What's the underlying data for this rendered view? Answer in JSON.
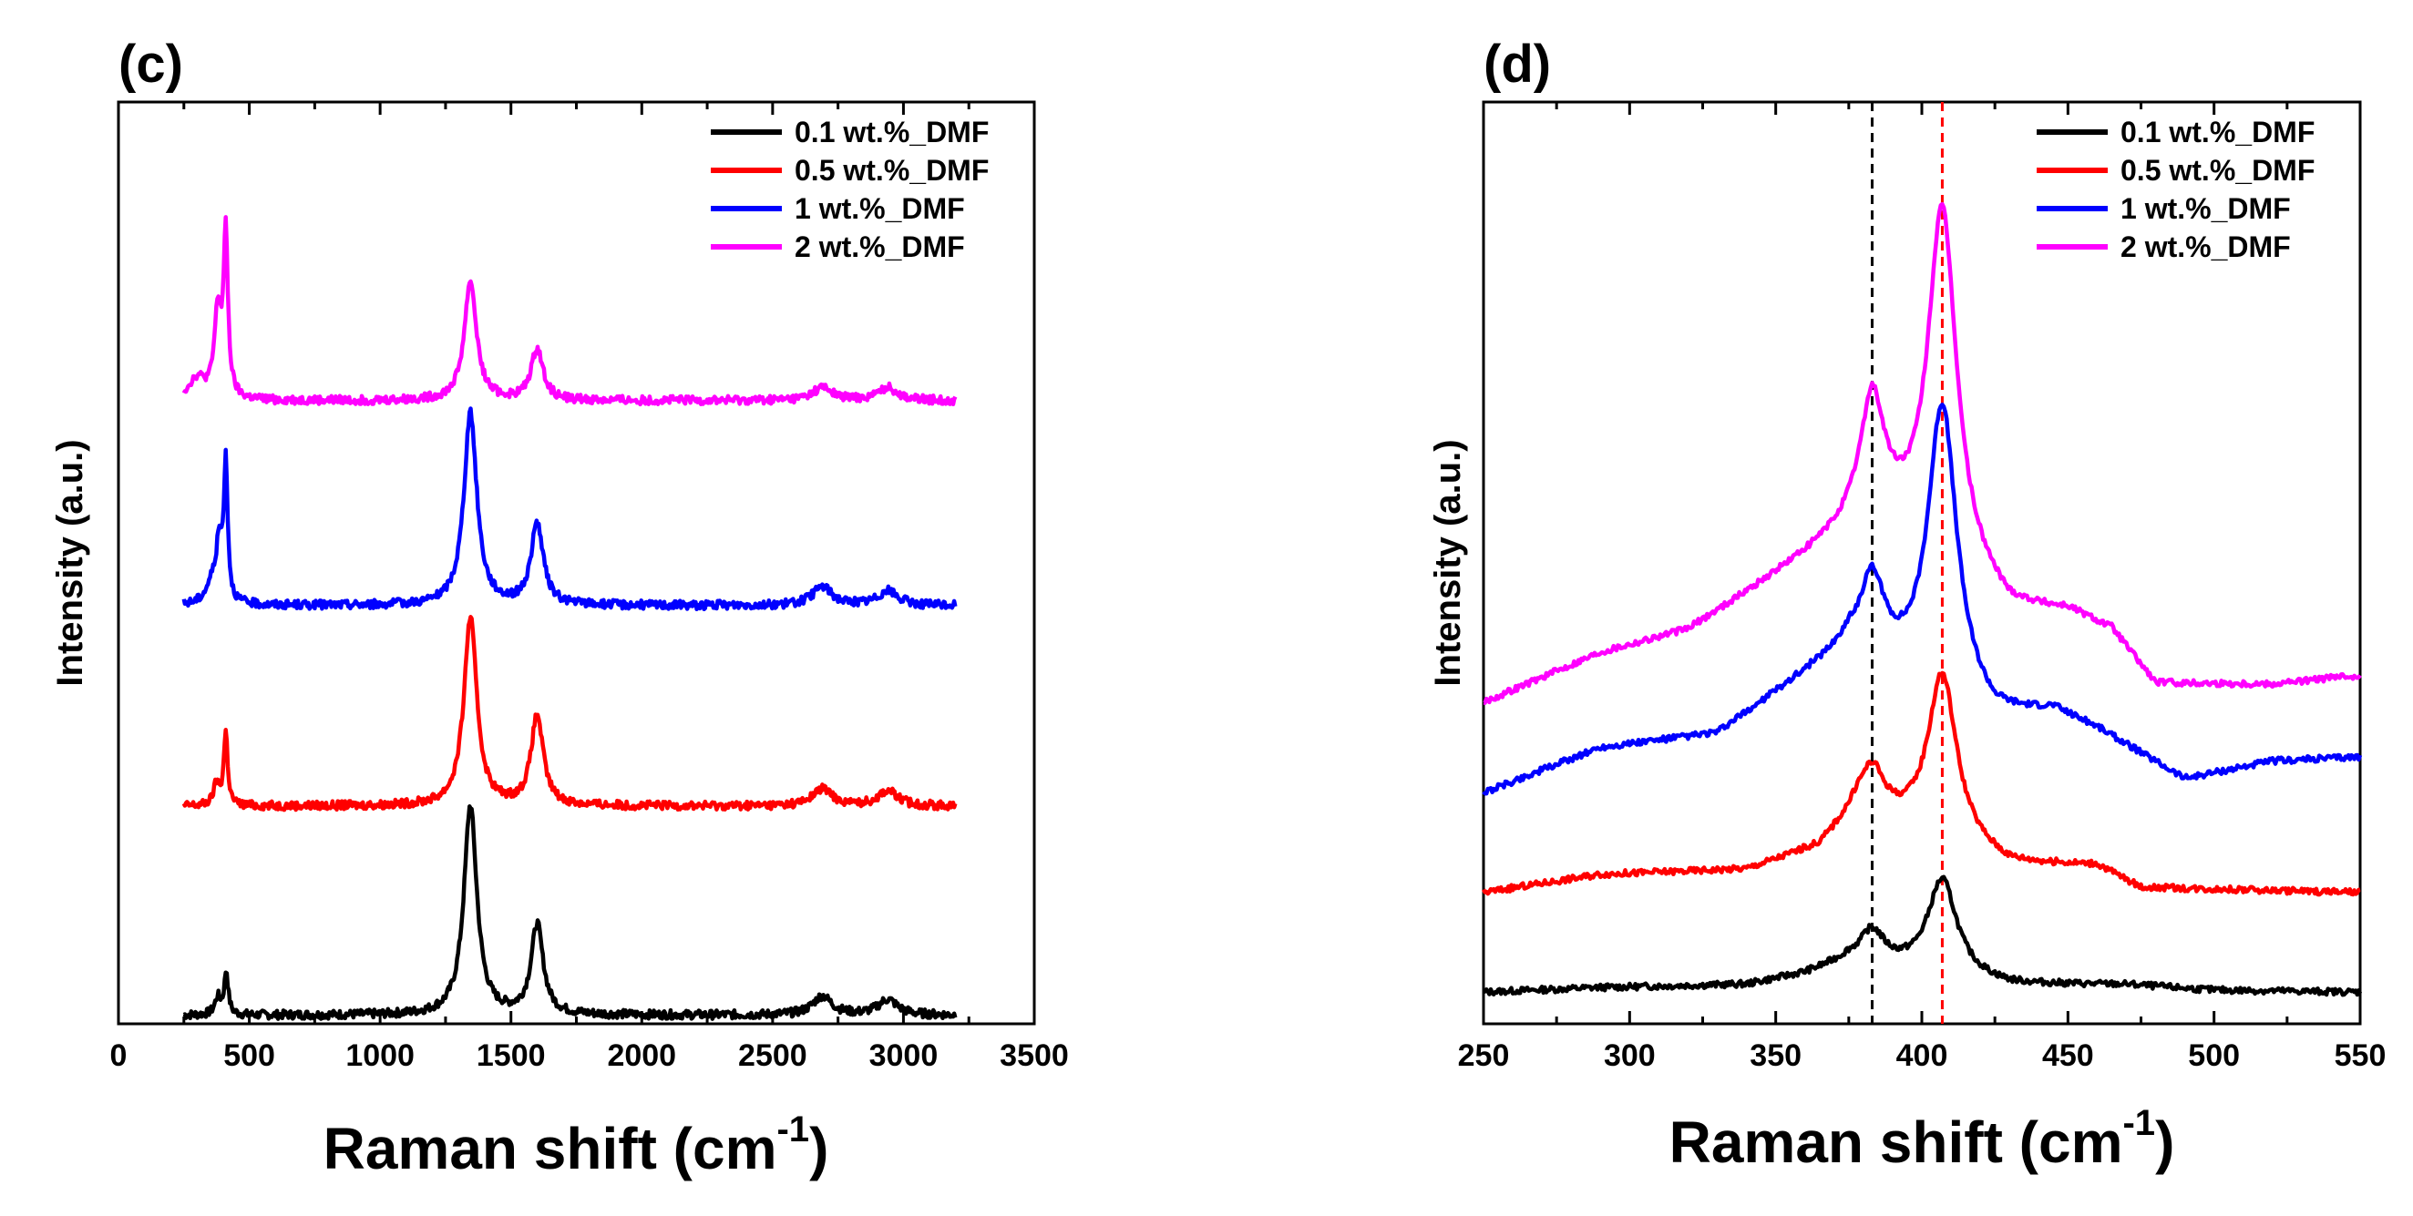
{
  "chart_data": [
    {
      "panel_label": "(c)",
      "type": "line",
      "xlabel_main": "Raman shift",
      "xlabel_unit": "cm",
      "xlabel_sup": "-1",
      "ylabel": "Intensity (a.u.)",
      "xlim": [
        0,
        3500
      ],
      "ylim": [
        0,
        10.8
      ],
      "xticks": [
        "0",
        "500",
        "1000",
        "1500",
        "2000",
        "2500",
        "3000",
        "3500"
      ],
      "yticks_shown": false,
      "legend_position": "top-right",
      "series": [
        {
          "name": "0.1 wt.%_DMF",
          "color": "#000000",
          "offset": 0.1,
          "peaks": [
            [
              380,
              0.2,
              14
            ],
            [
              412,
              0.5,
              9
            ],
            [
              1345,
              2.45,
              30
            ],
            [
              1600,
              1.05,
              28
            ],
            [
              2690,
              0.22,
              45
            ],
            [
              2940,
              0.18,
              45
            ]
          ]
        },
        {
          "name": "0.5 wt.%_DMF",
          "color": "#ff0000",
          "offset": 2.55,
          "peaks": [
            [
              375,
              0.25,
              14
            ],
            [
              410,
              0.85,
              9
            ],
            [
              1345,
              2.2,
              30
            ],
            [
              1600,
              1.05,
              28
            ],
            [
              2690,
              0.2,
              45
            ],
            [
              2940,
              0.18,
              45
            ]
          ]
        },
        {
          "name": "1 wt.%_DMF",
          "color": "#0000ff",
          "offset": 4.9,
          "peaks": [
            [
              360,
              0.25,
              30
            ],
            [
              385,
              0.6,
              13
            ],
            [
              410,
              1.6,
              9
            ],
            [
              1345,
              2.25,
              30
            ],
            [
              1600,
              0.95,
              28
            ],
            [
              2690,
              0.22,
              45
            ],
            [
              2940,
              0.17,
              45
            ]
          ]
        },
        {
          "name": "2 wt.%_DMF",
          "color": "#ff00ff",
          "offset": 7.3,
          "peaks": [
            [
              300,
              0.25,
              40
            ],
            [
              380,
              1.0,
              16
            ],
            [
              410,
              1.85,
              10
            ],
            [
              1345,
              1.4,
              28
            ],
            [
              1600,
              0.6,
              28
            ],
            [
              2690,
              0.15,
              45
            ],
            [
              2940,
              0.15,
              45
            ]
          ]
        }
      ]
    },
    {
      "panel_label": "(d)",
      "type": "line",
      "xlabel_main": "Raman shift",
      "xlabel_unit": "cm",
      "xlabel_sup": "-1",
      "ylabel": "Intensity (a.u.)",
      "xlim": [
        250,
        550
      ],
      "ylim": [
        0,
        10.2
      ],
      "xticks": [
        "250",
        "300",
        "350",
        "400",
        "450",
        "500",
        "550"
      ],
      "yticks_shown": false,
      "legend_position": "top-right",
      "reference_lines": [
        {
          "x": 383,
          "color": "#000000"
        },
        {
          "x": 407,
          "color": "#ff0000"
        }
      ],
      "series": [
        {
          "name": "0.1 wt.%_DMF",
          "color": "#000000",
          "offset": 0.35,
          "baseline": [
            [
              250,
              0.0
            ],
            [
              290,
              0.05
            ],
            [
              340,
              0.08
            ],
            [
              360,
              0.2
            ],
            [
              375,
              0.35
            ],
            [
              430,
              0.08
            ],
            [
              470,
              0.08
            ],
            [
              500,
              0.02
            ],
            [
              550,
              0.0
            ]
          ],
          "peaks": [
            [
              383,
              0.35,
              5
            ],
            [
              407,
              1.05,
              6
            ]
          ]
        },
        {
          "name": "0.5 wt.%_DMF",
          "color": "#ff0000",
          "offset": 1.45,
          "baseline": [
            [
              250,
              0.0
            ],
            [
              290,
              0.2
            ],
            [
              340,
              0.25
            ],
            [
              365,
              0.5
            ],
            [
              378,
              0.9
            ],
            [
              430,
              0.3
            ],
            [
              460,
              0.3
            ],
            [
              475,
              0.05
            ],
            [
              550,
              0.0
            ]
          ],
          "peaks": [
            [
              383,
              0.5,
              5
            ],
            [
              407,
              1.85,
              6
            ]
          ]
        },
        {
          "name": "1 wt.%_DMF",
          "color": "#0000ff",
          "offset": 2.55,
          "baseline": [
            [
              250,
              0.0
            ],
            [
              290,
              0.5
            ],
            [
              330,
              0.65
            ],
            [
              355,
              1.2
            ],
            [
              375,
              1.6
            ],
            [
              425,
              0.8
            ],
            [
              445,
              0.9
            ],
            [
              460,
              0.7
            ],
            [
              490,
              0.15
            ],
            [
              520,
              0.35
            ],
            [
              550,
              0.4
            ]
          ],
          "peaks": [
            [
              383,
              0.85,
              5
            ],
            [
              407,
              3.2,
              6
            ]
          ]
        },
        {
          "name": "2 wt.%_DMF",
          "color": "#ff00ff",
          "offset": 3.55,
          "baseline": [
            [
              250,
              0.0
            ],
            [
              290,
              0.55
            ],
            [
              320,
              0.8
            ],
            [
              350,
              1.4
            ],
            [
              370,
              1.8
            ],
            [
              383,
              2.1
            ],
            [
              430,
              1.0
            ],
            [
              450,
              1.0
            ],
            [
              465,
              0.8
            ],
            [
              480,
              0.2
            ],
            [
              520,
              0.2
            ],
            [
              550,
              0.3
            ]
          ],
          "peaks": [
            [
              383,
              1.2,
              5
            ],
            [
              407,
              3.9,
              6
            ]
          ]
        }
      ]
    }
  ]
}
